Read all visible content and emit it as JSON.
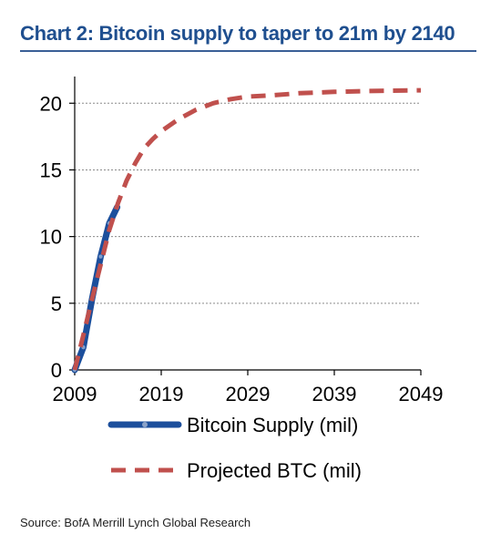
{
  "chart_data": {
    "type": "line",
    "title": "Chart 2: Bitcoin supply to taper to 21m by 2140",
    "source": "Source: BofA Merrill Lynch Global Research",
    "xlabel": "",
    "ylabel": "",
    "xlim": [
      2009,
      2049
    ],
    "ylim": [
      0,
      22
    ],
    "x_ticks": [
      2009,
      2019,
      2029,
      2039,
      2049
    ],
    "y_ticks": [
      0,
      5,
      10,
      15,
      20
    ],
    "grid": "horizontal",
    "legend_position": "bottom",
    "series": [
      {
        "name": "Bitcoin Supply (mil)",
        "style": "solid",
        "color": "#1c4f9c",
        "points": [
          [
            2009.0,
            0.0
          ],
          [
            2010.0,
            1.7
          ],
          [
            2011.0,
            5.3
          ],
          [
            2012.0,
            8.5
          ],
          [
            2013.0,
            11.0
          ],
          [
            2013.9,
            12.2
          ]
        ]
      },
      {
        "name": "Projected BTC (mil)",
        "style": "dashed",
        "color": "#c0504d",
        "points": [
          [
            2009.0,
            0.0
          ],
          [
            2010.0,
            2.6
          ],
          [
            2011.0,
            5.3
          ],
          [
            2012.0,
            7.9
          ],
          [
            2013.0,
            10.5
          ],
          [
            2014.0,
            12.5
          ],
          [
            2015.0,
            14.2
          ],
          [
            2016.0,
            15.5
          ],
          [
            2017.0,
            16.6
          ],
          [
            2018.0,
            17.3
          ],
          [
            2019.0,
            17.9
          ],
          [
            2021.0,
            18.8
          ],
          [
            2023.0,
            19.5
          ],
          [
            2025.0,
            20.0
          ],
          [
            2027.0,
            20.3
          ],
          [
            2029.0,
            20.5
          ],
          [
            2032.0,
            20.6
          ],
          [
            2035.0,
            20.75
          ],
          [
            2039.0,
            20.85
          ],
          [
            2044.0,
            20.93
          ],
          [
            2049.0,
            20.97
          ]
        ]
      }
    ]
  }
}
